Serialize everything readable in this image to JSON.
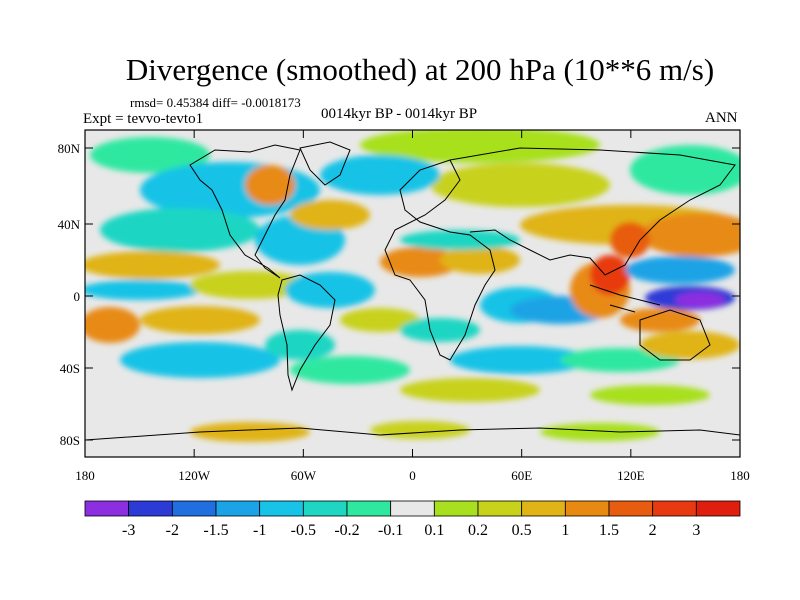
{
  "title": "Divergence (smoothed) at 200 hPa (10**6 m/s)",
  "stats": "rmsd= 0.45384 diff= -0.0018173",
  "experiment": "Expt = tevvo-tevto1",
  "time_label": "0014kyr BP - 0014kyr BP",
  "season": "ANN",
  "lat_ticks": [
    "80N",
    "40N",
    "0",
    "40S",
    "80S"
  ],
  "lon_ticks": [
    "180",
    "120W",
    "60W",
    "0",
    "60E",
    "120E",
    "180"
  ],
  "colorbar": {
    "labels": [
      "-3",
      "-2",
      "-1.5",
      "-1",
      "-0.5",
      "-0.2",
      "-0.1",
      "0.1",
      "0.2",
      "0.5",
      "1",
      "1.5",
      "2",
      "3"
    ],
    "colors": [
      "#8c2fe0",
      "#2d3bd6",
      "#1f6fe0",
      "#1aa3e6",
      "#17c3e6",
      "#1fd6c3",
      "#2ee8a0",
      "#e8e8e8",
      "#a8e01f",
      "#c8d21a",
      "#e0b416",
      "#e88a12",
      "#e85c10",
      "#e83a10",
      "#e01e0e"
    ]
  },
  "colors": {
    "background": "#e8e8e8",
    "coast": "#000000"
  }
}
